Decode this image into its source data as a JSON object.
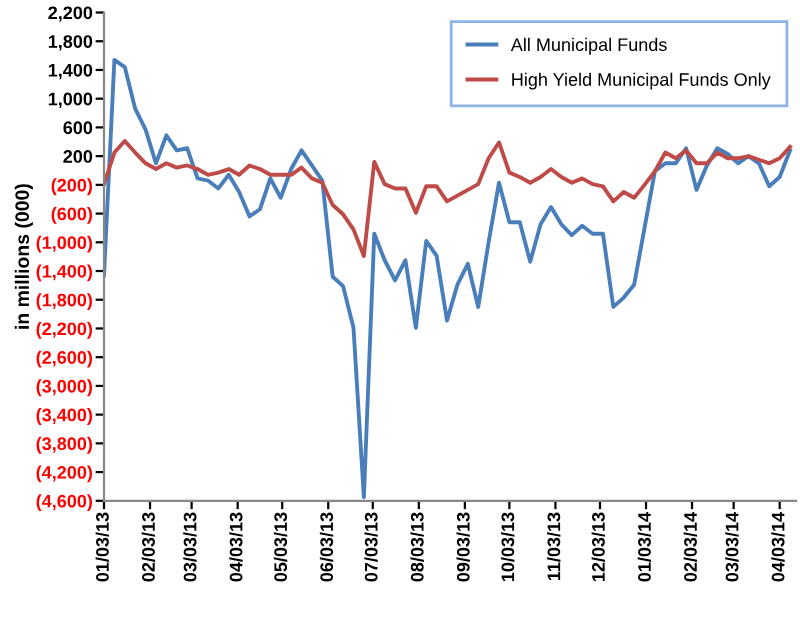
{
  "chart_data": {
    "type": "line",
    "ylabel": "in millions (000)",
    "x": [
      "2013-01-03",
      "2013-01-10",
      "2013-01-17",
      "2013-01-24",
      "2013-01-31",
      "2013-02-07",
      "2013-02-14",
      "2013-02-21",
      "2013-02-28",
      "2013-03-07",
      "2013-03-14",
      "2013-03-21",
      "2013-03-28",
      "2013-04-04",
      "2013-04-11",
      "2013-04-18",
      "2013-04-25",
      "2013-05-02",
      "2013-05-09",
      "2013-05-16",
      "2013-05-23",
      "2013-05-30",
      "2013-06-06",
      "2013-06-13",
      "2013-06-20",
      "2013-06-27",
      "2013-07-04",
      "2013-07-11",
      "2013-07-18",
      "2013-07-25",
      "2013-08-01",
      "2013-08-08",
      "2013-08-15",
      "2013-08-22",
      "2013-08-29",
      "2013-09-05",
      "2013-09-12",
      "2013-09-19",
      "2013-09-26",
      "2013-10-03",
      "2013-10-10",
      "2013-10-17",
      "2013-10-24",
      "2013-10-31",
      "2013-11-07",
      "2013-11-14",
      "2013-11-21",
      "2013-11-28",
      "2013-12-05",
      "2013-12-12",
      "2013-12-19",
      "2013-12-26",
      "2014-01-02",
      "2014-01-09",
      "2014-01-16",
      "2014-01-23",
      "2014-01-30",
      "2014-02-06",
      "2014-02-13",
      "2014-02-20",
      "2014-02-27",
      "2014-03-06",
      "2014-03-13",
      "2014-03-20",
      "2014-03-27",
      "2014-04-03",
      "2014-04-10"
    ],
    "series": [
      {
        "name": "All Municipal Funds",
        "color": "#4a7ebb",
        "values": [
          -1460,
          1540,
          1440,
          860,
          570,
          100,
          490,
          280,
          310,
          -110,
          -140,
          -250,
          -60,
          -300,
          -640,
          -540,
          -110,
          -380,
          20,
          280,
          70,
          -140,
          -1480,
          -1610,
          -2190,
          -4550,
          -880,
          -1250,
          -1530,
          -1250,
          -2190,
          -980,
          -1190,
          -2090,
          -1590,
          -1300,
          -1900,
          -1000,
          -170,
          -720,
          -720,
          -1270,
          -750,
          -510,
          -750,
          -900,
          -770,
          -880,
          -880,
          -1900,
          -1770,
          -1590,
          -800,
          -10,
          100,
          100,
          310,
          -270,
          70,
          310,
          230,
          100,
          200,
          100,
          -220,
          -90,
          280
        ]
      },
      {
        "name": "High Yield Municipal Funds Only",
        "color": "#be4b48",
        "values": [
          -190,
          250,
          410,
          250,
          100,
          20,
          100,
          40,
          70,
          20,
          -60,
          -30,
          20,
          -60,
          70,
          20,
          -60,
          -60,
          -60,
          40,
          -110,
          -170,
          -480,
          -610,
          -820,
          -1190,
          120,
          -190,
          -250,
          -250,
          -590,
          -220,
          -220,
          -430,
          -350,
          -270,
          -190,
          170,
          390,
          -30,
          -90,
          -170,
          -90,
          20,
          -90,
          -170,
          -110,
          -190,
          -220,
          -430,
          -300,
          -380,
          -200,
          -10,
          250,
          170,
          280,
          100,
          100,
          250,
          170,
          170,
          200,
          150,
          100,
          170,
          330
        ]
      }
    ],
    "xlim": [
      "2013-01-03",
      "2014-04-14"
    ],
    "xticks": [
      {
        "value": "2013-01-03",
        "label": "01/03/13"
      },
      {
        "value": "2013-02-03",
        "label": "02/03/13"
      },
      {
        "value": "2013-03-03",
        "label": "03/03/13"
      },
      {
        "value": "2013-04-03",
        "label": "04/03/13"
      },
      {
        "value": "2013-05-03",
        "label": "05/03/13"
      },
      {
        "value": "2013-06-03",
        "label": "06/03/13"
      },
      {
        "value": "2013-07-03",
        "label": "07/03/13"
      },
      {
        "value": "2013-08-03",
        "label": "08/03/13"
      },
      {
        "value": "2013-09-03",
        "label": "09/03/13"
      },
      {
        "value": "2013-10-03",
        "label": "10/03/13"
      },
      {
        "value": "2013-11-03",
        "label": "11/03/13"
      },
      {
        "value": "2013-12-03",
        "label": "12/03/13"
      },
      {
        "value": "2014-01-03",
        "label": "01/03/14"
      },
      {
        "value": "2014-02-03",
        "label": "02/03/14"
      },
      {
        "value": "2014-03-03",
        "label": "03/03/14"
      },
      {
        "value": "2014-04-03",
        "label": "04/03/14"
      }
    ],
    "ylim": [
      -4600,
      2200
    ],
    "yticks": [
      {
        "value": 2200,
        "label": "2,200"
      },
      {
        "value": 1800,
        "label": "1,800"
      },
      {
        "value": 1400,
        "label": "1,400"
      },
      {
        "value": 1000,
        "label": "1,000"
      },
      {
        "value": 600,
        "label": "600"
      },
      {
        "value": 200,
        "label": "200"
      },
      {
        "value": -200,
        "label": "(200)"
      },
      {
        "value": -600,
        "label": "(600)"
      },
      {
        "value": -1000,
        "label": "(1,000)"
      },
      {
        "value": -1400,
        "label": "(1,400)"
      },
      {
        "value": -1800,
        "label": "(1,800)"
      },
      {
        "value": -2200,
        "label": "(2,200)"
      },
      {
        "value": -2600,
        "label": "(2,600)"
      },
      {
        "value": -3000,
        "label": "(3,000)"
      },
      {
        "value": -3400,
        "label": "(3,400)"
      },
      {
        "value": -3800,
        "label": "(3,800)"
      },
      {
        "value": -4200,
        "label": "(4,200)"
      },
      {
        "value": -4600,
        "label": "(4,600)"
      }
    ],
    "legend": "top right",
    "grid": false,
    "marker": "none",
    "line_style": "solid"
  }
}
